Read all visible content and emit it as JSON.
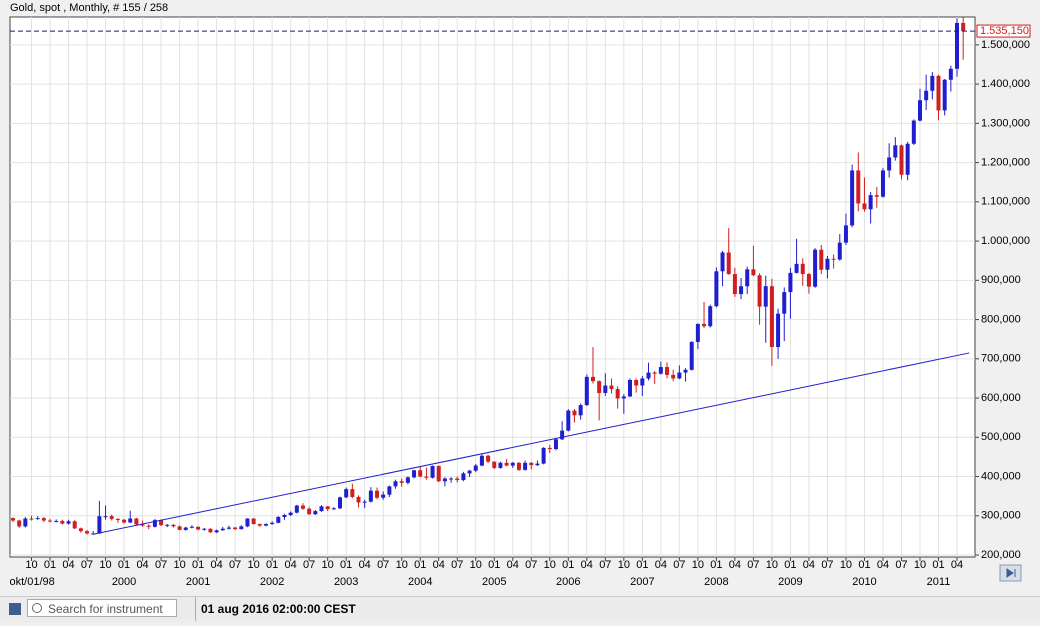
{
  "chart_data": {
    "type": "candlestick",
    "title": "Gold, spot , Monthly, # 155 / 258",
    "x": [
      "1998-07",
      "1998-08",
      "1998-09",
      "1998-10",
      "1998-11",
      "1998-12",
      "1999-01",
      "1999-02",
      "1999-03",
      "1999-04",
      "1999-05",
      "1999-06",
      "1999-07",
      "1999-08",
      "1999-09",
      "1999-10",
      "1999-11",
      "1999-12",
      "2000-01",
      "2000-02",
      "2000-03",
      "2000-04",
      "2000-05",
      "2000-06",
      "2000-07",
      "2000-08",
      "2000-09",
      "2000-10",
      "2000-11",
      "2000-12",
      "2001-01",
      "2001-02",
      "2001-03",
      "2001-04",
      "2001-05",
      "2001-06",
      "2001-07",
      "2001-08",
      "2001-09",
      "2001-10",
      "2001-11",
      "2001-12",
      "2002-01",
      "2002-02",
      "2002-03",
      "2002-04",
      "2002-05",
      "2002-06",
      "2002-07",
      "2002-08",
      "2002-09",
      "2002-10",
      "2002-11",
      "2002-12",
      "2003-01",
      "2003-02",
      "2003-03",
      "2003-04",
      "2003-05",
      "2003-06",
      "2003-07",
      "2003-08",
      "2003-09",
      "2003-10",
      "2003-11",
      "2003-12",
      "2004-01",
      "2004-02",
      "2004-03",
      "2004-04",
      "2004-05",
      "2004-06",
      "2004-07",
      "2004-08",
      "2004-09",
      "2004-10",
      "2004-11",
      "2004-12",
      "2005-01",
      "2005-02",
      "2005-03",
      "2005-04",
      "2005-05",
      "2005-06",
      "2005-07",
      "2005-08",
      "2005-09",
      "2005-10",
      "2005-11",
      "2005-12",
      "2006-01",
      "2006-02",
      "2006-03",
      "2006-04",
      "2006-05",
      "2006-06",
      "2006-07",
      "2006-08",
      "2006-09",
      "2006-10",
      "2006-11",
      "2006-12",
      "2007-01",
      "2007-02",
      "2007-03",
      "2007-04",
      "2007-05",
      "2007-06",
      "2007-07",
      "2007-08",
      "2007-09",
      "2007-10",
      "2007-11",
      "2007-12",
      "2008-01",
      "2008-02",
      "2008-03",
      "2008-04",
      "2008-05",
      "2008-06",
      "2008-07",
      "2008-08",
      "2008-09",
      "2008-10",
      "2008-11",
      "2008-12",
      "2009-01",
      "2009-02",
      "2009-03",
      "2009-04",
      "2009-05",
      "2009-06",
      "2009-07",
      "2009-08",
      "2009-09",
      "2009-10",
      "2009-11",
      "2009-12",
      "2010-01",
      "2010-02",
      "2010-03",
      "2010-04",
      "2010-05",
      "2010-06",
      "2010-07",
      "2010-08",
      "2010-09",
      "2010-10",
      "2010-11",
      "2010-12",
      "2011-01",
      "2011-02",
      "2011-03",
      "2011-04",
      "2011-05"
    ],
    "open": [
      294000,
      288000,
      273000,
      293000,
      292000,
      294000,
      288000,
      287000,
      287000,
      280000,
      286000,
      268000,
      261000,
      255000,
      255000,
      299000,
      299000,
      292000,
      290000,
      283000,
      293000,
      278000,
      275000,
      272000,
      289000,
      276000,
      277000,
      273000,
      264000,
      270000,
      272000,
      265000,
      267000,
      258000,
      263000,
      267000,
      270000,
      266000,
      273000,
      293000,
      279000,
      275000,
      279000,
      282000,
      297000,
      302000,
      308000,
      326000,
      318000,
      304000,
      312000,
      324000,
      317000,
      319000,
      347000,
      368000,
      348000,
      334000,
      336000,
      364000,
      346000,
      354000,
      375000,
      388000,
      384000,
      398000,
      416000,
      400000,
      397000,
      427000,
      388000,
      395000,
      395000,
      391000,
      408000,
      415000,
      428000,
      453000,
      438000,
      422000,
      435000,
      428000,
      435000,
      417000,
      435000,
      429000,
      433000,
      473000,
      470000,
      495000,
      517000,
      568000,
      556000,
      582000,
      654000,
      643000,
      613000,
      632000,
      623000,
      599000,
      604000,
      646000,
      632000,
      650000,
      665000,
      662000,
      679000,
      659000,
      650000,
      665000,
      672000,
      743000,
      789000,
      783000,
      834000,
      923000,
      971000,
      916000,
      865000,
      885000,
      928000,
      913000,
      833000,
      885000,
      730000,
      815000,
      870000,
      919000,
      942000,
      916000,
      884000,
      978000,
      927000,
      955000,
      953000,
      996000,
      1040000,
      1180000,
      1096000,
      1081000,
      1117000,
      1113000,
      1180000,
      1213000,
      1244000,
      1169000,
      1248000,
      1307000,
      1359000,
      1383000,
      1421000,
      1333000,
      1411000,
      1439000,
      1556000
    ],
    "high": [
      296000,
      290000,
      297000,
      300000,
      299000,
      297000,
      292000,
      291000,
      290000,
      290000,
      289000,
      270000,
      264000,
      261000,
      338000,
      326000,
      303000,
      294000,
      292000,
      313000,
      295000,
      288000,
      278000,
      292000,
      291000,
      279000,
      279000,
      275000,
      272000,
      276000,
      273000,
      269000,
      268000,
      265000,
      272000,
      275000,
      272000,
      276000,
      294000,
      294000,
      280000,
      281000,
      286000,
      299000,
      305000,
      311000,
      328000,
      332000,
      322000,
      315000,
      327000,
      325000,
      322000,
      349000,
      372000,
      382000,
      352000,
      341000,
      373000,
      372000,
      362000,
      377000,
      392000,
      395000,
      400000,
      417000,
      427000,
      423000,
      428000,
      428000,
      398000,
      398000,
      400000,
      412000,
      417000,
      432000,
      456000,
      456000,
      439000,
      438000,
      445000,
      437000,
      437000,
      441000,
      437000,
      441000,
      475000,
      481000,
      498000,
      541000,
      572000,
      572000,
      586000,
      660000,
      730000,
      645000,
      663000,
      650000,
      630000,
      610000,
      650000,
      650000,
      656000,
      690000,
      669000,
      693000,
      691000,
      672000,
      683000,
      676000,
      745000,
      790000,
      845000,
      838000,
      933000,
      975000,
      1033000,
      932000,
      906000,
      935000,
      988000,
      918000,
      912000,
      904000,
      828000,
      882000,
      932000,
      1006000,
      956000,
      919000,
      982000,
      990000,
      962000,
      966000,
      1018000,
      1070000,
      1195000,
      1226000,
      1162000,
      1125000,
      1138000,
      1186000,
      1249000,
      1265000,
      1246000,
      1253000,
      1310000,
      1388000,
      1424000,
      1431000,
      1424000,
      1413000,
      1447000,
      1568000,
      1570000
    ],
    "low": [
      284000,
      269000,
      270000,
      288000,
      290000,
      284000,
      283000,
      283000,
      278000,
      278000,
      266000,
      257000,
      252000,
      252000,
      254000,
      290000,
      288000,
      282000,
      280000,
      281000,
      275000,
      272000,
      266000,
      270000,
      274000,
      271000,
      270000,
      263000,
      262000,
      268000,
      263000,
      262000,
      256000,
      256000,
      262000,
      265000,
      264000,
      265000,
      271000,
      278000,
      272000,
      273000,
      277000,
      281000,
      290000,
      299000,
      306000,
      315000,
      302000,
      302000,
      310000,
      312000,
      315000,
      317000,
      345000,
      345000,
      321000,
      320000,
      334000,
      342000,
      341000,
      348000,
      369000,
      374000,
      380000,
      395000,
      398000,
      392000,
      395000,
      386000,
      375000,
      384000,
      385000,
      388000,
      399000,
      411000,
      426000,
      434000,
      419000,
      420000,
      426000,
      422000,
      414000,
      415000,
      418000,
      427000,
      431000,
      460000,
      467000,
      493000,
      515000,
      538000,
      545000,
      580000,
      637000,
      543000,
      606000,
      612000,
      573000,
      560000,
      603000,
      614000,
      605000,
      645000,
      636000,
      660000,
      650000,
      643000,
      648000,
      642000,
      670000,
      725000,
      779000,
      780000,
      831000,
      885000,
      914000,
      858000,
      852000,
      865000,
      911000,
      787000,
      741000,
      682000,
      700000,
      745000,
      802000,
      917000,
      886000,
      866000,
      881000,
      916000,
      905000,
      930000,
      950000,
      990000,
      1035000,
      1076000,
      1075000,
      1045000,
      1085000,
      1111000,
      1162000,
      1205000,
      1157000,
      1155000,
      1245000,
      1305000,
      1334000,
      1361000,
      1308000,
      1320000,
      1381000,
      1419000,
      1462000
    ],
    "close": [
      288000,
      273000,
      293000,
      292000,
      294000,
      288000,
      287000,
      287000,
      280000,
      286000,
      268000,
      261000,
      255000,
      255000,
      299000,
      299000,
      292000,
      290000,
      283000,
      293000,
      278000,
      275000,
      272000,
      289000,
      276000,
      277000,
      273000,
      264000,
      270000,
      272000,
      265000,
      267000,
      258000,
      263000,
      267000,
      270000,
      266000,
      273000,
      293000,
      279000,
      275000,
      279000,
      282000,
      297000,
      302000,
      308000,
      326000,
      318000,
      304000,
      312000,
      324000,
      317000,
      319000,
      347000,
      368000,
      348000,
      334000,
      336000,
      364000,
      346000,
      354000,
      375000,
      388000,
      384000,
      398000,
      416000,
      400000,
      397000,
      427000,
      388000,
      395000,
      395000,
      391000,
      408000,
      415000,
      428000,
      453000,
      438000,
      422000,
      435000,
      428000,
      435000,
      417000,
      435000,
      429000,
      433000,
      473000,
      470000,
      495000,
      517000,
      568000,
      556000,
      582000,
      654000,
      643000,
      613000,
      632000,
      623000,
      599000,
      604000,
      646000,
      632000,
      650000,
      665000,
      662000,
      679000,
      659000,
      650000,
      665000,
      672000,
      743000,
      789000,
      783000,
      834000,
      923000,
      971000,
      916000,
      865000,
      885000,
      928000,
      913000,
      833000,
      885000,
      730000,
      815000,
      870000,
      919000,
      942000,
      916000,
      884000,
      978000,
      927000,
      955000,
      953000,
      996000,
      1040000,
      1180000,
      1096000,
      1081000,
      1117000,
      1113000,
      1180000,
      1213000,
      1244000,
      1169000,
      1248000,
      1307000,
      1359000,
      1383000,
      1421000,
      1333000,
      1411000,
      1439000,
      1556000,
      1535150
    ],
    "up_color": "#1f1fd0",
    "down_color": "#d01f1f",
    "grid": true,
    "ylim": [
      195000,
      1571000
    ],
    "yticks": [
      {
        "value": 200000,
        "label": "200,000"
      },
      {
        "value": 300000,
        "label": "300,000"
      },
      {
        "value": 400000,
        "label": "400,000"
      },
      {
        "value": 500000,
        "label": "500,000"
      },
      {
        "value": 600000,
        "label": "600,000"
      },
      {
        "value": 700000,
        "label": "700,000"
      },
      {
        "value": 800000,
        "label": "800,000"
      },
      {
        "value": 900000,
        "label": "900,000"
      },
      {
        "value": 1000000,
        "label": "1.000,000"
      },
      {
        "value": 1100000,
        "label": "1.100,000"
      },
      {
        "value": 1200000,
        "label": "1.200,000"
      },
      {
        "value": 1300000,
        "label": "1.300,000"
      },
      {
        "value": 1400000,
        "label": "1.400,000"
      },
      {
        "value": 1500000,
        "label": "1.500,000"
      }
    ],
    "xticks": [
      {
        "value": "1998-10",
        "label": "10"
      },
      {
        "value": "1999-01",
        "label": "01"
      },
      {
        "value": "1999-04",
        "label": "04"
      },
      {
        "value": "1999-07",
        "label": "07"
      },
      {
        "value": "1999-10",
        "label": "10"
      },
      {
        "value": "2000-01",
        "label": "01"
      },
      {
        "value": "2000-04",
        "label": "04"
      },
      {
        "value": "2000-07",
        "label": "07"
      },
      {
        "value": "2000-10",
        "label": "10"
      },
      {
        "value": "2001-01",
        "label": "01"
      },
      {
        "value": "2001-04",
        "label": "04"
      },
      {
        "value": "2001-07",
        "label": "07"
      },
      {
        "value": "2001-10",
        "label": "10"
      },
      {
        "value": "2002-01",
        "label": "01"
      },
      {
        "value": "2002-04",
        "label": "04"
      },
      {
        "value": "2002-07",
        "label": "07"
      },
      {
        "value": "2002-10",
        "label": "10"
      },
      {
        "value": "2003-01",
        "label": "01"
      },
      {
        "value": "2003-04",
        "label": "04"
      },
      {
        "value": "2003-07",
        "label": "07"
      },
      {
        "value": "2003-10",
        "label": "10"
      },
      {
        "value": "2004-01",
        "label": "01"
      },
      {
        "value": "2004-04",
        "label": "04"
      },
      {
        "value": "2004-07",
        "label": "07"
      },
      {
        "value": "2004-10",
        "label": "10"
      },
      {
        "value": "2005-01",
        "label": "01"
      },
      {
        "value": "2005-04",
        "label": "04"
      },
      {
        "value": "2005-07",
        "label": "07"
      },
      {
        "value": "2005-10",
        "label": "10"
      },
      {
        "value": "2006-01",
        "label": "01"
      },
      {
        "value": "2006-04",
        "label": "04"
      },
      {
        "value": "2006-07",
        "label": "07"
      },
      {
        "value": "2006-10",
        "label": "10"
      },
      {
        "value": "2007-01",
        "label": "01"
      },
      {
        "value": "2007-04",
        "label": "04"
      },
      {
        "value": "2007-07",
        "label": "07"
      },
      {
        "value": "2007-10",
        "label": "10"
      },
      {
        "value": "2008-01",
        "label": "01"
      },
      {
        "value": "2008-04",
        "label": "04"
      },
      {
        "value": "2008-07",
        "label": "07"
      },
      {
        "value": "2008-10",
        "label": "10"
      },
      {
        "value": "2009-01",
        "label": "01"
      },
      {
        "value": "2009-04",
        "label": "04"
      },
      {
        "value": "2009-07",
        "label": "07"
      },
      {
        "value": "2009-10",
        "label": "10"
      },
      {
        "value": "2010-01",
        "label": "01"
      },
      {
        "value": "2010-04",
        "label": "04"
      },
      {
        "value": "2010-07",
        "label": "07"
      },
      {
        "value": "2010-10",
        "label": "10"
      },
      {
        "value": "2011-01",
        "label": "01"
      },
      {
        "value": "2011-04",
        "label": "04"
      }
    ],
    "x_year_labels": [
      {
        "value": "1998-10",
        "label": "okt/01/98"
      },
      {
        "value": "2000-01",
        "label": "2000"
      },
      {
        "value": "2001-01",
        "label": "2001"
      },
      {
        "value": "2002-01",
        "label": "2002"
      },
      {
        "value": "2003-01",
        "label": "2003"
      },
      {
        "value": "2004-01",
        "label": "2004"
      },
      {
        "value": "2005-01",
        "label": "2005"
      },
      {
        "value": "2006-01",
        "label": "2006"
      },
      {
        "value": "2007-01",
        "label": "2007"
      },
      {
        "value": "2008-01",
        "label": "2008"
      },
      {
        "value": "2009-01",
        "label": "2009"
      },
      {
        "value": "2010-01",
        "label": "2010"
      },
      {
        "value": "2011-01",
        "label": "2011"
      }
    ],
    "price_line": {
      "value": 1535150,
      "label": "1.535,150",
      "color": "#d01f1f"
    },
    "trendline": {
      "x": [
        "1999-08",
        "2011-06"
      ],
      "values": [
        253000,
        715000
      ],
      "color": "#1f1fd0"
    }
  },
  "toolbar": {
    "search_placeholder": "Search for instrument",
    "datetime": "01 aug 2016 02:00:00 CEST"
  }
}
